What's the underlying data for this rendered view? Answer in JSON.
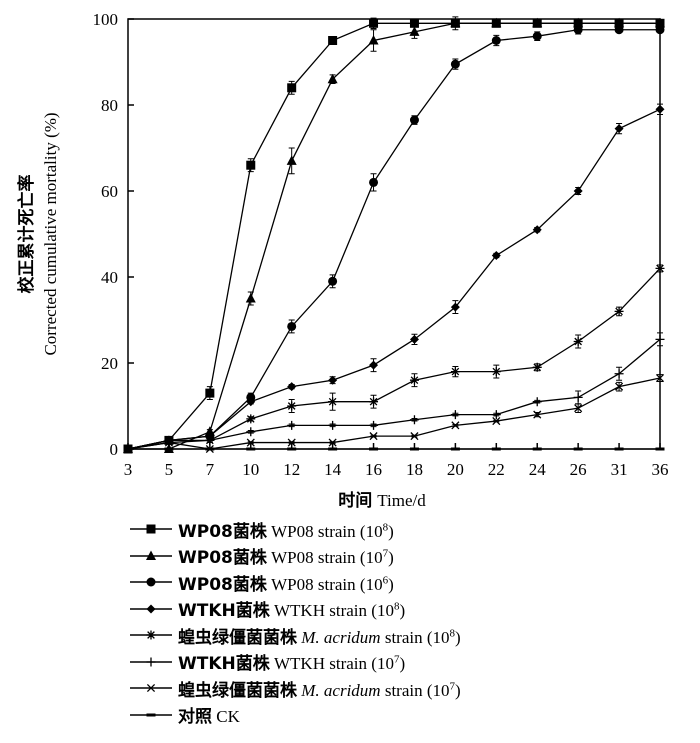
{
  "chart_data": {
    "type": "line",
    "title": "",
    "ylabel_cn": "校正累计死亡率",
    "ylabel_en": "Corrected cumulative mortality (%)",
    "xlabel_cn": "时间",
    "xlabel_en": "Time/d",
    "categories": [
      "3",
      "5",
      "7",
      "10",
      "12",
      "14",
      "16",
      "18",
      "20",
      "22",
      "24",
      "26",
      "31",
      "36"
    ],
    "ylim": [
      0,
      100
    ],
    "yticks": [
      "0",
      "20",
      "40",
      "60",
      "80",
      "100"
    ],
    "grid": false,
    "legend_position": "bottom",
    "series": [
      {
        "name_cn": "WP08菌株",
        "name_en": "WP08 strain",
        "conc_base": "10",
        "conc_exp": "8",
        "marker": "square",
        "values": [
          0,
          2,
          13,
          66,
          84,
          95,
          99,
          99,
          99,
          99,
          99,
          99,
          99,
          99
        ],
        "errors": [
          0,
          0,
          1.5,
          1.5,
          1.5,
          0.8,
          1.2,
          0.5,
          1.5,
          0.5,
          0.5,
          0.5,
          0.5,
          0.5
        ]
      },
      {
        "name_cn": "WP08菌株",
        "name_en": "WP08 strain",
        "conc_base": "10",
        "conc_exp": "7",
        "marker": "triangle",
        "values": [
          0,
          0,
          4,
          35,
          67,
          86,
          95,
          97,
          99,
          99,
          99,
          99,
          99,
          99
        ],
        "errors": [
          0,
          0,
          0.5,
          1.5,
          3,
          1,
          2.5,
          1.5,
          0.5,
          0.5,
          0.5,
          0.5,
          0.5,
          0.5
        ]
      },
      {
        "name_cn": "WP08菌株",
        "name_en": "WP08 strain",
        "conc_base": "10",
        "conc_exp": "6",
        "marker": "circle",
        "values": [
          0,
          2,
          3,
          12,
          28.5,
          39,
          62,
          76.5,
          89.5,
          95,
          96,
          97.5,
          97.5,
          97.5
        ],
        "errors": [
          0,
          0,
          0.5,
          1,
          1.5,
          1.5,
          2,
          1,
          1.2,
          1.2,
          1,
          1,
          0.5,
          0.5
        ]
      },
      {
        "name_cn": "WTKH菌株",
        "name_en": "WTKH strain",
        "conc_base": "10",
        "conc_exp": "8",
        "marker": "diamond",
        "values": [
          0,
          2,
          3,
          11,
          14.5,
          16,
          19.5,
          25.5,
          33,
          45,
          51,
          60,
          74.5,
          79
        ],
        "errors": [
          0,
          0,
          0.5,
          0.5,
          0.5,
          0.8,
          1.5,
          1.2,
          1.5,
          0.5,
          0.5,
          0.8,
          1.2,
          1.2
        ]
      },
      {
        "name_cn": "蝗虫绿僵菌菌株",
        "name_en": "M. acridum",
        "name_en_suffix": " strain",
        "italic": true,
        "conc_base": "10",
        "conc_exp": "8",
        "marker": "asterisk",
        "values": [
          0,
          2,
          2,
          7,
          10,
          11,
          11,
          16,
          18,
          18,
          19,
          25,
          32,
          42
        ],
        "errors": [
          0,
          0,
          0.5,
          0.5,
          1.5,
          2,
          1.5,
          1.5,
          1.2,
          1.5,
          0.8,
          1.5,
          1,
          0.8
        ]
      },
      {
        "name_cn": "WTKH菌株",
        "name_en": "WTKH strain",
        "conc_base": "10",
        "conc_exp": "7",
        "marker": "plus",
        "values": [
          0,
          1.5,
          2,
          4,
          5.5,
          5.5,
          5.5,
          6.8,
          8,
          8,
          11,
          12,
          17.5,
          25.5
        ],
        "errors": [
          0,
          0,
          0.3,
          0.3,
          0.3,
          0.3,
          0.3,
          0.3,
          0.3,
          0.3,
          0.3,
          1.5,
          1.5,
          1.5
        ]
      },
      {
        "name_cn": "蝗虫绿僵菌菌株",
        "name_en": "M. acridum",
        "name_en_suffix": " strain",
        "italic": true,
        "conc_base": "10",
        "conc_exp": "7",
        "marker": "cross",
        "values": [
          0,
          1.5,
          0,
          1.5,
          1.5,
          1.5,
          3,
          3,
          5.5,
          6.5,
          8,
          9.5,
          14.5,
          16.5
        ],
        "errors": [
          0,
          0,
          0.2,
          0.2,
          0.2,
          0.2,
          0.2,
          0.2,
          0.2,
          0.2,
          0.5,
          1,
          1,
          0.8
        ]
      },
      {
        "name_cn": "对照",
        "name_en": "CK",
        "marker": "dash",
        "values": [
          0,
          0,
          0,
          0,
          0,
          0,
          0,
          0,
          0,
          0,
          0,
          0,
          0,
          0
        ],
        "errors": [
          0,
          0,
          0,
          0,
          0,
          0,
          0,
          0,
          0,
          0,
          0,
          0,
          0,
          0
        ]
      }
    ]
  }
}
